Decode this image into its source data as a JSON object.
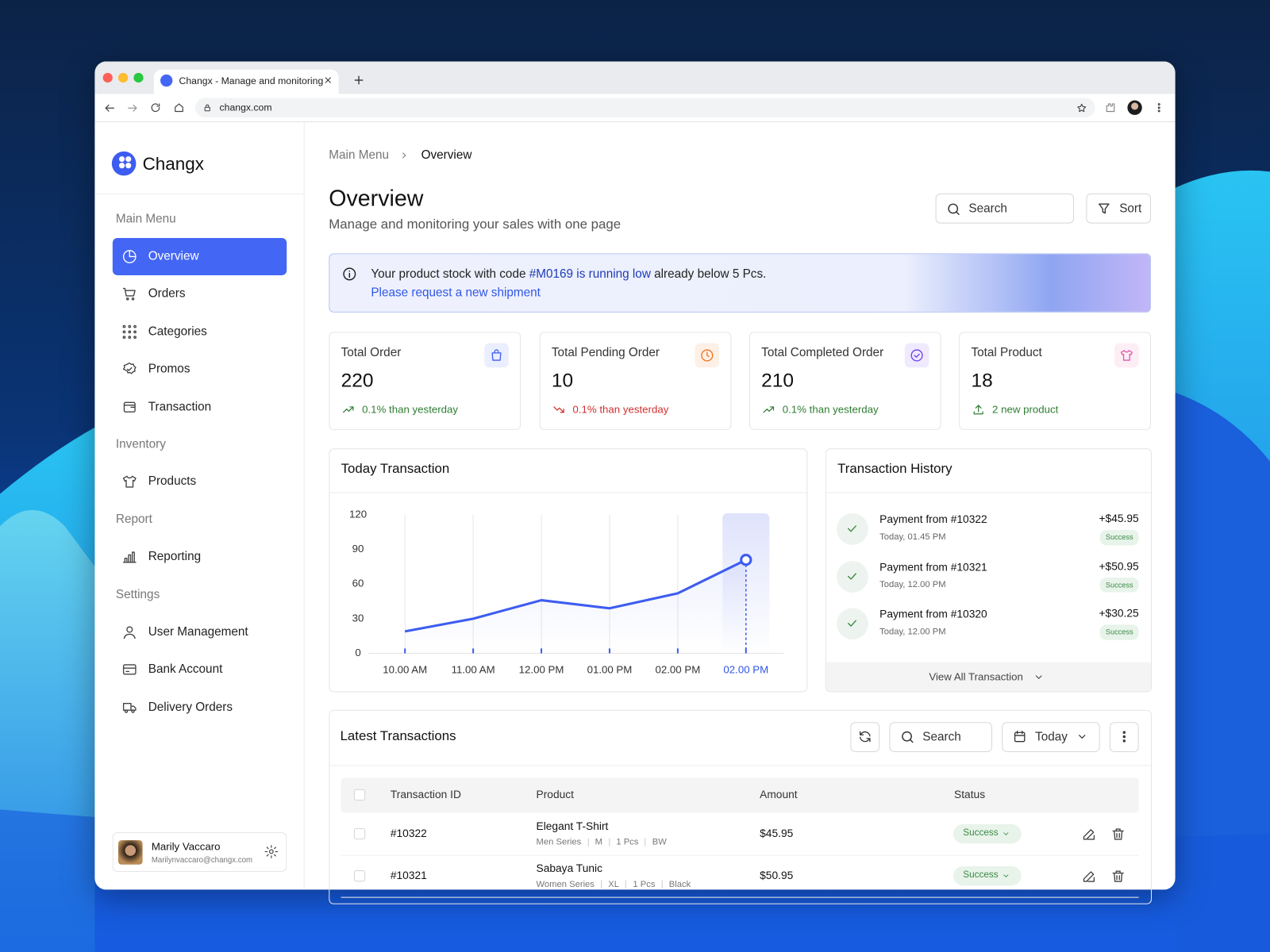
{
  "browser": {
    "tab_title": "Changx - Manage and monitoring",
    "url": "changx.com"
  },
  "sidebar": {
    "brand": "Changx",
    "sections": [
      {
        "title": "Main Menu",
        "items": [
          "Overview",
          "Orders",
          "Categories",
          "Promos",
          "Transaction"
        ]
      },
      {
        "title": "Inventory",
        "items": [
          "Products"
        ]
      },
      {
        "title": "Report",
        "items": [
          "Reporting"
        ]
      },
      {
        "title": "Settings",
        "items": [
          "User Management",
          "Bank Account",
          "Delivery Orders"
        ]
      }
    ],
    "user": {
      "name": "Marily Vaccaro",
      "email": "Marilynvaccaro@changx.com"
    }
  },
  "header": {
    "breadcrumb": [
      "Main Menu",
      "Overview"
    ],
    "title": "Overview",
    "subtitle": "Manage and monitoring your sales with one page",
    "search": "Search",
    "sort": "Sort"
  },
  "alert": {
    "text_before": "Your product stock with code ",
    "highlight": "#M0169 is running low",
    "text_after": " already below 5 Pcs.",
    "link": "Please request a new shipment"
  },
  "stats": [
    {
      "label": "Total Order",
      "value": 220,
      "change": "0.1% than yesterday"
    },
    {
      "label": "Total Pending Order",
      "value": 10,
      "change": "0.1% than yesterday"
    },
    {
      "label": "Total Completed Order",
      "value": 210,
      "change": "0.1% than yesterday"
    },
    {
      "label": "Total Product",
      "value": 18,
      "change": "2 new product"
    }
  ],
  "chart_data": {
    "type": "line",
    "title": "Today Transaction",
    "categories": [
      "10.00 AM",
      "11.00 AM",
      "12.00 PM",
      "01.00 PM",
      "02.00 PM",
      "02.00 PM"
    ],
    "values": [
      19,
      30,
      46,
      39,
      52,
      81
    ],
    "color": "#3d5cf0",
    "ylim": [
      0,
      120
    ],
    "yticks": [
      0,
      30,
      60,
      90,
      120
    ],
    "grid": true
  },
  "history": {
    "title": "Transaction History",
    "items": [
      {
        "title": "Payment from #10322",
        "time": "Today, 01.45 PM",
        "amount": "+$45.95",
        "status": "Success"
      },
      {
        "title": "Payment from #10321",
        "time": "Today, 12.00 PM",
        "amount": "+$50.95",
        "status": "Success"
      },
      {
        "title": "Payment from #10320",
        "time": "Today, 12.00 PM",
        "amount": "+$30.25",
        "status": "Success"
      }
    ],
    "footer": "View All Transaction"
  },
  "latest": {
    "title": "Latest Transactions",
    "search": "Search",
    "filter": "Today",
    "columns": [
      "Transaction ID",
      "Product",
      "Amount",
      "Status"
    ],
    "rows": [
      {
        "id": "#10322",
        "product": "Elegant T-Shirt",
        "details": [
          "Men Series",
          "M",
          "1 Pcs",
          "BW"
        ],
        "amount": "$45.95",
        "status": "Success"
      },
      {
        "id": "#10321",
        "product": "Sabaya Tunic",
        "details": [
          "Women Series",
          "XL",
          "1 Pcs",
          "Black"
        ],
        "amount": "$50.95",
        "status": "Success"
      }
    ]
  }
}
